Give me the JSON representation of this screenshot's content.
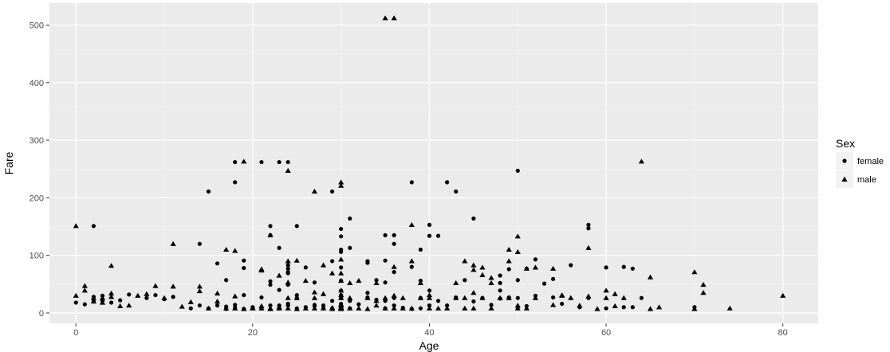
{
  "chart_data": {
    "type": "scatter",
    "title": "",
    "xlabel": "Age",
    "ylabel": "Fare",
    "xlim": [
      -3,
      84
    ],
    "ylim": [
      -18,
      538
    ],
    "x_ticks": [
      0,
      20,
      40,
      60,
      80
    ],
    "y_ticks": [
      0,
      100,
      200,
      300,
      400,
      500
    ],
    "grid": true,
    "legend": {
      "title": "Sex",
      "position": "right"
    },
    "series": [
      {
        "name": "female",
        "shape": "circle",
        "color": "#000000",
        "points": [
          [
            2,
            151
          ],
          [
            15,
            211
          ],
          [
            14,
            120
          ],
          [
            18,
            262
          ],
          [
            18,
            227
          ],
          [
            21,
            262
          ],
          [
            23,
            262
          ],
          [
            24,
            262
          ],
          [
            29,
            211
          ],
          [
            22,
            151
          ],
          [
            22,
            135
          ],
          [
            23,
            113
          ],
          [
            24,
            83
          ],
          [
            24,
            77
          ],
          [
            25,
            151
          ],
          [
            16,
            86
          ],
          [
            17,
            57
          ],
          [
            19,
            91
          ],
          [
            19,
            78
          ],
          [
            24,
            69
          ],
          [
            26,
            79
          ],
          [
            29,
            90
          ],
          [
            30,
            146
          ],
          [
            30,
            133
          ],
          [
            30,
            110
          ],
          [
            30,
            106
          ],
          [
            31,
            164
          ],
          [
            31,
            113
          ],
          [
            33,
            90
          ],
          [
            34,
            57
          ],
          [
            35,
            135
          ],
          [
            35,
            91
          ],
          [
            35,
            53
          ],
          [
            36,
            135
          ],
          [
            36,
            120
          ],
          [
            36,
            71
          ],
          [
            38,
            227
          ],
          [
            38,
            80
          ],
          [
            39,
            110
          ],
          [
            39,
            56
          ],
          [
            40,
            153
          ],
          [
            40,
            134
          ],
          [
            41,
            134
          ],
          [
            42,
            227
          ],
          [
            43,
            211
          ],
          [
            45,
            164
          ],
          [
            48,
            65
          ],
          [
            48,
            52
          ],
          [
            49,
            76
          ],
          [
            49,
            26
          ],
          [
            50,
            247
          ],
          [
            50,
            57
          ],
          [
            51,
            77
          ],
          [
            52,
            93
          ],
          [
            53,
            51
          ],
          [
            54,
            59
          ],
          [
            56,
            83
          ],
          [
            58,
            153
          ],
          [
            58,
            147
          ],
          [
            60,
            79
          ],
          [
            62,
            80
          ],
          [
            63,
            77
          ],
          [
            0,
            18
          ],
          [
            1,
            15
          ],
          [
            2,
            20
          ],
          [
            2,
            28
          ],
          [
            3,
            30
          ],
          [
            3,
            21
          ],
          [
            4,
            18
          ],
          [
            5,
            22
          ],
          [
            6,
            32
          ],
          [
            8,
            26
          ],
          [
            9,
            31
          ],
          [
            10,
            24
          ],
          [
            11,
            28
          ],
          [
            13,
            8
          ],
          [
            14,
            13
          ],
          [
            15,
            8
          ],
          [
            16,
            13
          ],
          [
            17,
            11
          ],
          [
            17,
            7
          ],
          [
            18,
            14
          ],
          [
            18,
            9
          ],
          [
            19,
            7
          ],
          [
            20,
            10
          ],
          [
            21,
            8
          ],
          [
            21,
            27
          ],
          [
            22,
            13
          ],
          [
            22,
            49
          ],
          [
            22,
            55
          ],
          [
            23,
            13
          ],
          [
            23,
            8
          ],
          [
            24,
            13
          ],
          [
            24,
            16
          ],
          [
            24,
            49
          ],
          [
            24,
            71
          ],
          [
            25,
            8
          ],
          [
            25,
            26
          ],
          [
            26,
            10
          ],
          [
            27,
            12
          ],
          [
            27,
            53
          ],
          [
            28,
            8
          ],
          [
            28,
            13
          ],
          [
            29,
            21
          ],
          [
            29,
            8
          ],
          [
            30,
            8
          ],
          [
            30,
            13
          ],
          [
            30,
            26
          ],
          [
            30,
            31
          ],
          [
            30,
            56
          ],
          [
            30,
            79
          ],
          [
            30,
            16
          ],
          [
            31,
            21
          ],
          [
            31,
            8
          ],
          [
            32,
            15
          ],
          [
            33,
            27
          ],
          [
            33,
            87
          ],
          [
            34,
            23
          ],
          [
            35,
            21
          ],
          [
            35,
            8
          ],
          [
            36,
            13
          ],
          [
            36,
            26
          ],
          [
            37,
            9
          ],
          [
            38,
            7
          ],
          [
            39,
            8
          ],
          [
            39,
            26
          ],
          [
            40,
            13
          ],
          [
            40,
            39
          ],
          [
            41,
            21
          ],
          [
            42,
            13
          ],
          [
            43,
            27
          ],
          [
            44,
            57
          ],
          [
            45,
            20
          ],
          [
            46,
            26
          ],
          [
            47,
            14
          ],
          [
            48,
            39
          ],
          [
            48,
            25
          ],
          [
            49,
            27
          ],
          [
            50,
            10
          ],
          [
            50,
            26
          ],
          [
            51,
            12
          ],
          [
            52,
            30
          ],
          [
            54,
            27
          ],
          [
            55,
            16
          ],
          [
            57,
            10
          ],
          [
            58,
            26
          ],
          [
            60,
            8
          ],
          [
            62,
            10
          ],
          [
            63,
            10
          ],
          [
            64,
            26
          ],
          [
            70,
            10
          ],
          [
            30,
            39
          ],
          [
            25,
            31
          ],
          [
            23,
            40
          ],
          [
            19,
            31
          ],
          [
            33,
            35
          ],
          [
            27,
            14
          ]
        ]
      },
      {
        "name": "male",
        "shape": "triangle",
        "color": "#000000",
        "points": [
          [
            35,
            512
          ],
          [
            36,
            512
          ],
          [
            19,
            263
          ],
          [
            24,
            247
          ],
          [
            64,
            263
          ],
          [
            30,
            227
          ],
          [
            30,
            221
          ],
          [
            27,
            211
          ],
          [
            0,
            151
          ],
          [
            22,
            135
          ],
          [
            38,
            153
          ],
          [
            50,
            133
          ],
          [
            58,
            113
          ],
          [
            11,
            120
          ],
          [
            17,
            110
          ],
          [
            18,
            108
          ],
          [
            4,
            82
          ],
          [
            21,
            76
          ],
          [
            24,
            90
          ],
          [
            25,
            91
          ],
          [
            28,
            83
          ],
          [
            30,
            93
          ],
          [
            31,
            52
          ],
          [
            36,
            80
          ],
          [
            38,
            90
          ],
          [
            43,
            52
          ],
          [
            44,
            90
          ],
          [
            45,
            83
          ],
          [
            46,
            79
          ],
          [
            47,
            61
          ],
          [
            49,
            110
          ],
          [
            49,
            90
          ],
          [
            50,
            106
          ],
          [
            51,
            77
          ],
          [
            52,
            79
          ],
          [
            54,
            77
          ],
          [
            55,
            30
          ],
          [
            58,
            29
          ],
          [
            60,
            39
          ],
          [
            61,
            33
          ],
          [
            62,
            26
          ],
          [
            65,
            62
          ],
          [
            70,
            71
          ],
          [
            71,
            49
          ],
          [
            71,
            35
          ],
          [
            74,
            8
          ],
          [
            80,
            30
          ],
          [
            0,
            30
          ],
          [
            1,
            39
          ],
          [
            1,
            47
          ],
          [
            2,
            26
          ],
          [
            2,
            20
          ],
          [
            3,
            18
          ],
          [
            3,
            26
          ],
          [
            4,
            34
          ],
          [
            4,
            28
          ],
          [
            5,
            12
          ],
          [
            6,
            13
          ],
          [
            7,
            30
          ],
          [
            8,
            33
          ],
          [
            9,
            47
          ],
          [
            10,
            26
          ],
          [
            11,
            46
          ],
          [
            12,
            11
          ],
          [
            13,
            19
          ],
          [
            14,
            46
          ],
          [
            14,
            38
          ],
          [
            15,
            8
          ],
          [
            16,
            34
          ],
          [
            16,
            20
          ],
          [
            17,
            8
          ],
          [
            18,
            8
          ],
          [
            19,
            7
          ],
          [
            20,
            9
          ],
          [
            20,
            8
          ],
          [
            21,
            8
          ],
          [
            21,
            12
          ],
          [
            21,
            74
          ],
          [
            22,
            7
          ],
          [
            22,
            8
          ],
          [
            23,
            8
          ],
          [
            23,
            10
          ],
          [
            24,
            8
          ],
          [
            24,
            53
          ],
          [
            24,
            26
          ],
          [
            25,
            7
          ],
          [
            25,
            26
          ],
          [
            26,
            8
          ],
          [
            26,
            56
          ],
          [
            27,
            8
          ],
          [
            27,
            26
          ],
          [
            28,
            8
          ],
          [
            28,
            33
          ],
          [
            29,
            7
          ],
          [
            29,
            9
          ],
          [
            29,
            69
          ],
          [
            30,
            7
          ],
          [
            30,
            8
          ],
          [
            30,
            9
          ],
          [
            30,
            10
          ],
          [
            30,
            13
          ],
          [
            30,
            15
          ],
          [
            30,
            26
          ],
          [
            30,
            31
          ],
          [
            30,
            39
          ],
          [
            30,
            56
          ],
          [
            30,
            69
          ],
          [
            31,
            8
          ],
          [
            31,
            26
          ],
          [
            32,
            8
          ],
          [
            32,
            56
          ],
          [
            33,
            7
          ],
          [
            33,
            26
          ],
          [
            34,
            13
          ],
          [
            34,
            21
          ],
          [
            35,
            8
          ],
          [
            35,
            26
          ],
          [
            36,
            8
          ],
          [
            36,
            30
          ],
          [
            37,
            8
          ],
          [
            37,
            26
          ],
          [
            38,
            8
          ],
          [
            39,
            26
          ],
          [
            40,
            8
          ],
          [
            40,
            26
          ],
          [
            41,
            8
          ],
          [
            42,
            8
          ],
          [
            43,
            26
          ],
          [
            44,
            8
          ],
          [
            44,
            26
          ],
          [
            45,
            8
          ],
          [
            45,
            35
          ],
          [
            46,
            26
          ],
          [
            47,
            8
          ],
          [
            47,
            52
          ],
          [
            48,
            26
          ],
          [
            49,
            26
          ],
          [
            50,
            8
          ],
          [
            50,
            13
          ],
          [
            51,
            8
          ],
          [
            52,
            26
          ],
          [
            54,
            14
          ],
          [
            55,
            31
          ],
          [
            56,
            26
          ],
          [
            57,
            13
          ],
          [
            59,
            7
          ],
          [
            60,
            26
          ],
          [
            61,
            12
          ],
          [
            65,
            7
          ],
          [
            66,
            10
          ],
          [
            70,
            7
          ],
          [
            45,
            75
          ],
          [
            40,
            31
          ],
          [
            34,
            52
          ],
          [
            27,
            36
          ],
          [
            18,
            29
          ],
          [
            23,
            65
          ],
          [
            46,
            66
          ],
          [
            39,
            52
          ]
        ]
      }
    ]
  }
}
